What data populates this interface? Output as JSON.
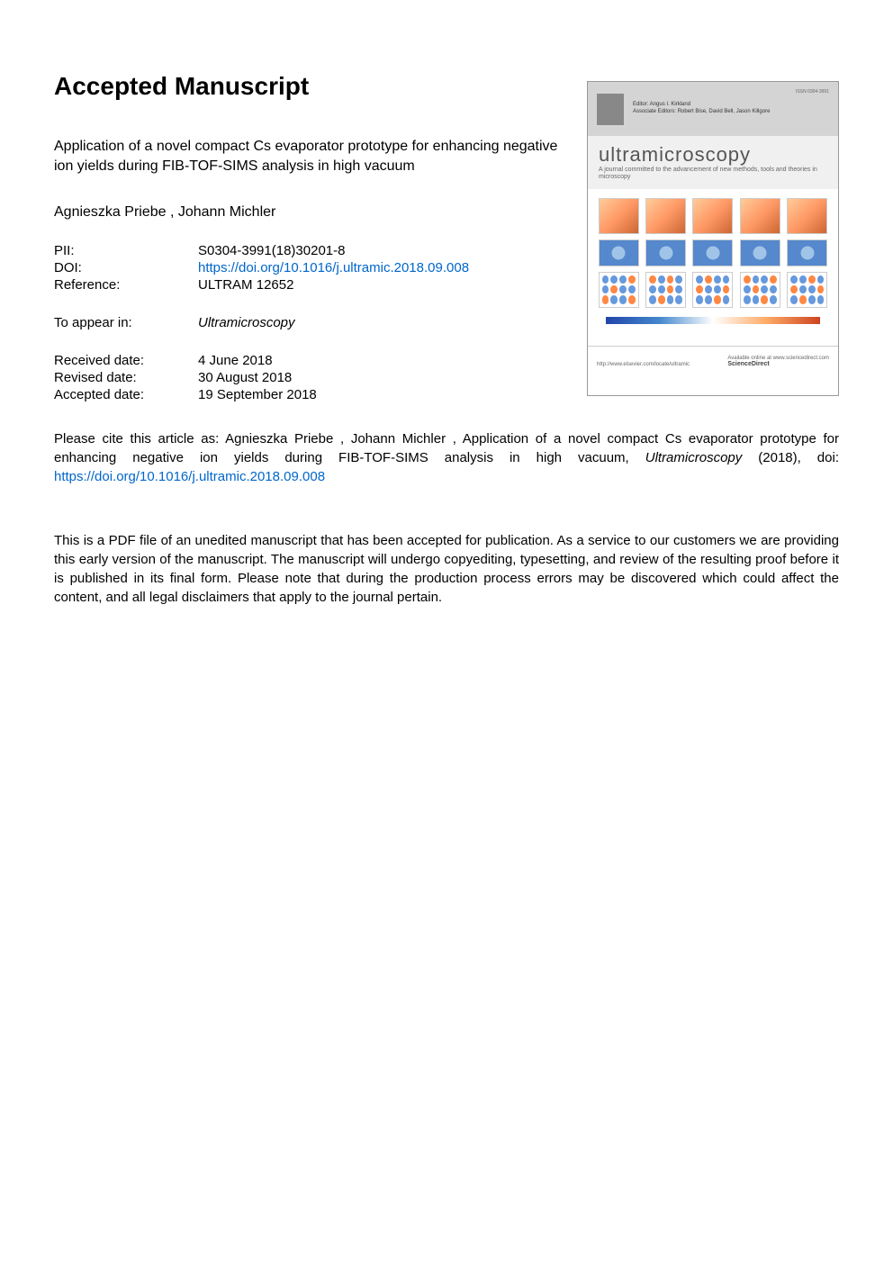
{
  "heading": "Accepted Manuscript",
  "article": {
    "title": "Application of a novel compact Cs evaporator prototype for enhancing negative ion yields during FIB-TOF-SIMS analysis in high vacuum",
    "authors": "Agnieszka Priebe ,  Johann Michler"
  },
  "meta": {
    "pii_label": "PII:",
    "pii_value": "S0304-3991(18)30201-8",
    "doi_label": "DOI:",
    "doi_value": "https://doi.org/10.1016/j.ultramic.2018.09.008",
    "ref_label": "Reference:",
    "ref_value": "ULTRAM 12652"
  },
  "appear": {
    "label": "To appear in:",
    "value": "Ultramicroscopy"
  },
  "dates": {
    "received_label": "Received date:",
    "received_value": "4 June 2018",
    "revised_label": "Revised date:",
    "revised_value": "30 August 2018",
    "accepted_label": "Accepted date:",
    "accepted_value": "19 September 2018"
  },
  "citation": {
    "prefix": "Please cite this article as: Agnieszka Priebe , Johann Michler , Application of a novel compact Cs evaporator prototype for enhancing negative ion yields during FIB-TOF-SIMS analysis in high vacuum, ",
    "journal": "Ultramicroscopy",
    "year": " (2018), doi: ",
    "link": "https://doi.org/10.1016/j.ultramic.2018.09.008"
  },
  "disclaimer": "This is a PDF file of an unedited manuscript that has been accepted for publication. As a service to our customers we are providing this early version of the manuscript. The manuscript will undergo copyediting, typesetting, and review of the resulting proof before it is published in its final form. Please note that during the production process errors may be discovered which could affect the content, and all legal disclaimers that apply to the journal pertain.",
  "cover": {
    "issn": "ISSN 0304-3991",
    "editor_line1": "Editor: Angus I. Kirkland",
    "editor_line2": "Associate Editors: Robert Bise, David Bell, Jason Killgore",
    "journal_name": "ultramicroscopy",
    "tagline": "A journal committed to the advancement of new methods, tools and theories in microscopy",
    "url": "http://www.elsevier.com/locate/ultramic",
    "available": "Available online at www.sciencedirect.com",
    "sciencedirect": "ScienceDirect"
  },
  "colors": {
    "link": "#0066cc",
    "text": "#000000",
    "background": "#ffffff"
  }
}
